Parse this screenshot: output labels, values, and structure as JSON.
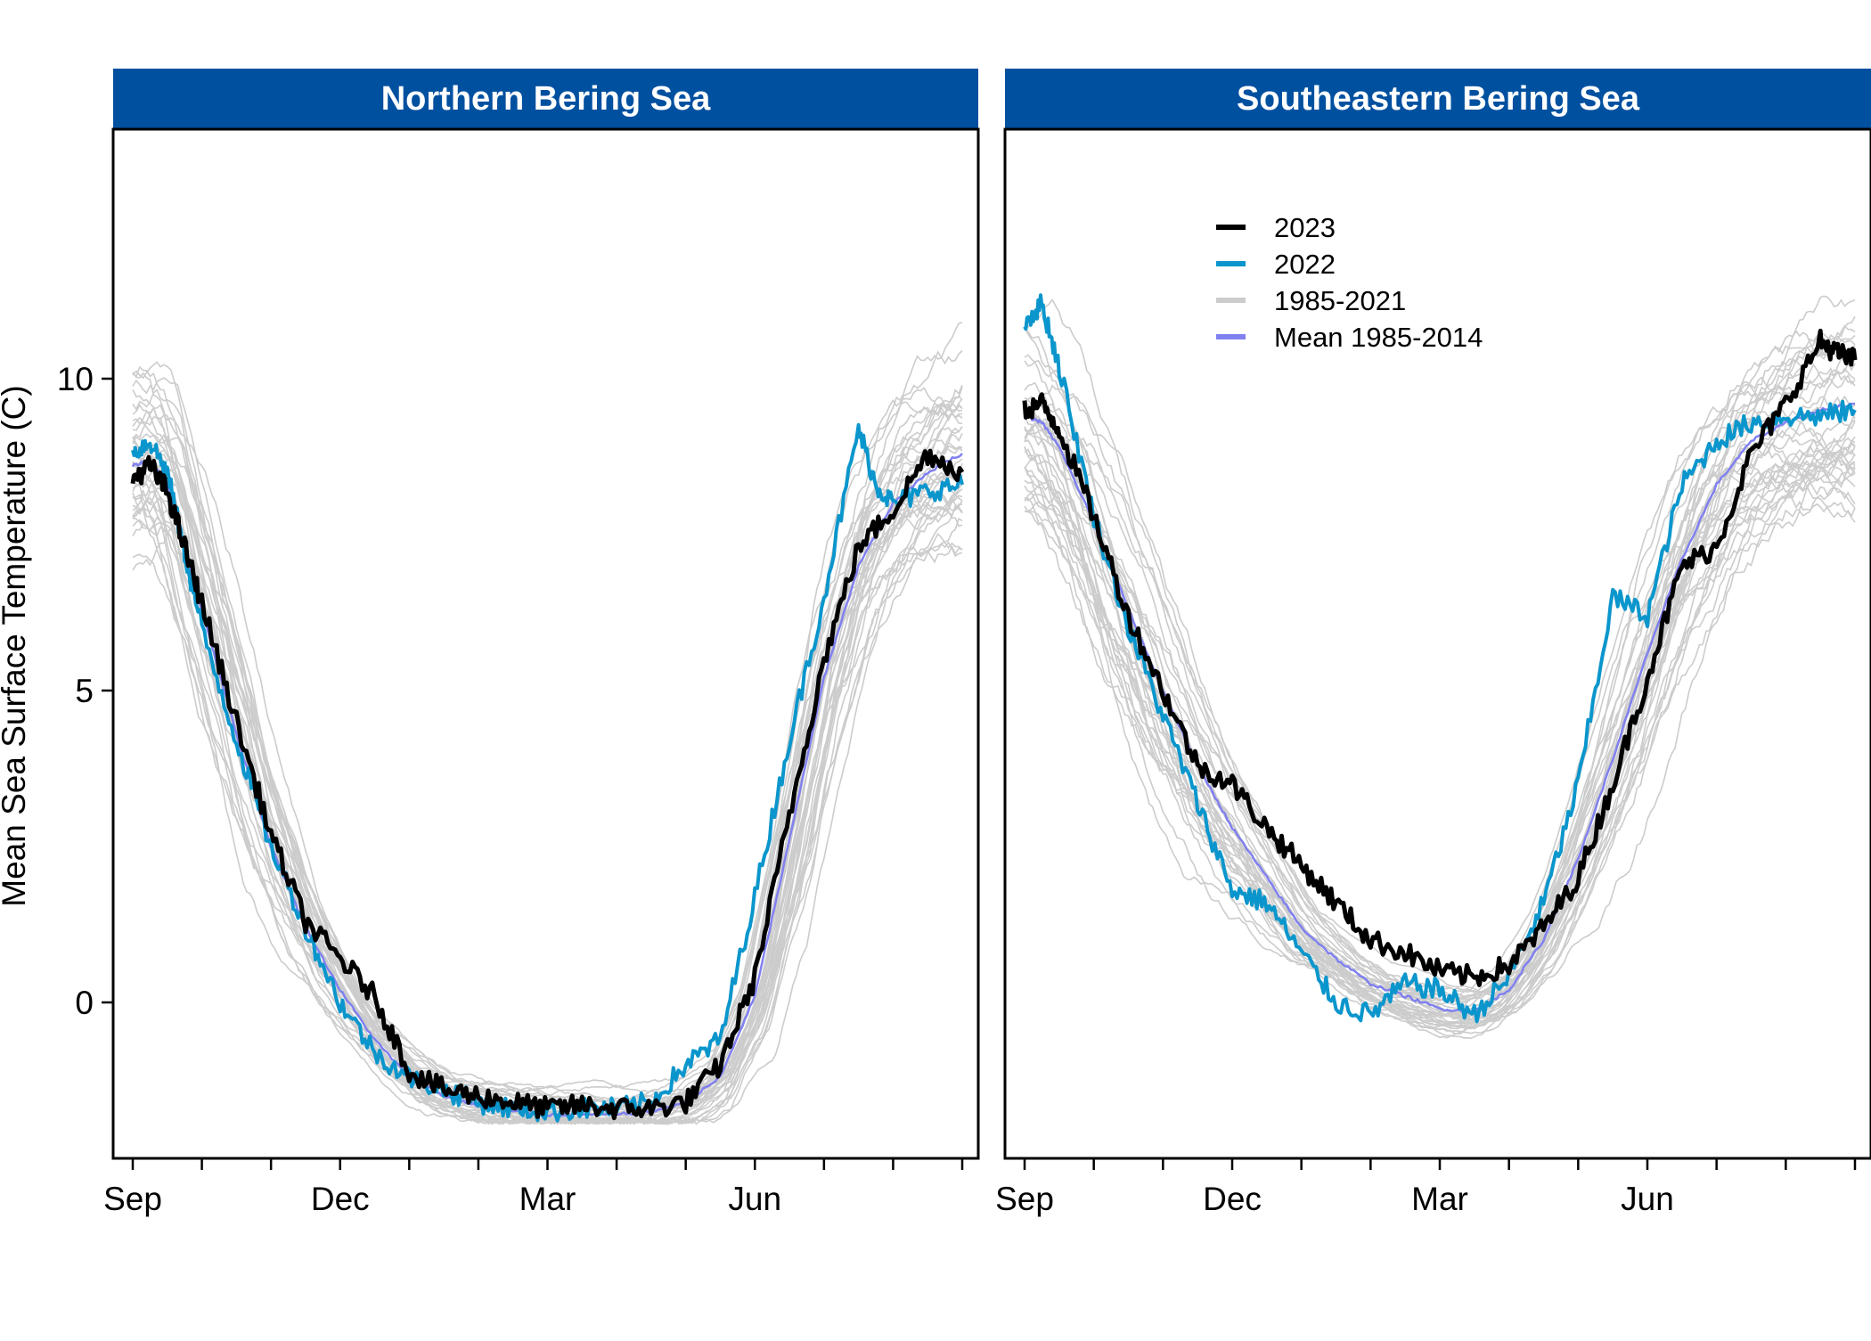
{
  "ylabel": "Mean Sea Surface Temperature (C)",
  "yticks": [
    0,
    5,
    10
  ],
  "xtick_labels": [
    "Sep",
    "Dec",
    "Mar",
    "Jun"
  ],
  "legend_items": [
    {
      "label": "2023",
      "color": "#000000"
    },
    {
      "label": "2022",
      "color": "#0a96cc"
    },
    {
      "label": "1985-2021",
      "color": "#cccccc"
    },
    {
      "label": "Mean 1985-2014",
      "color": "#8080f0"
    }
  ],
  "colors": {
    "strip": "#0050a0",
    "strip_text": "#ffffff",
    "y2023": "#000000",
    "y2022": "#0a96cc",
    "history": "#cccccc",
    "mean": "#8080f0"
  },
  "chart_data": [
    {
      "type": "line",
      "title": "Northern Bering Sea",
      "x_unit": "month of season (0 = Sep 1)",
      "xlim": [
        0,
        12
      ],
      "ylim": [
        -2.5,
        14
      ],
      "series": [
        {
          "name": "2023",
          "x": [
            0,
            0.25,
            0.5,
            0.75,
            1,
            1.5,
            2,
            2.5,
            3,
            3.5,
            4,
            4.5,
            5,
            5.5,
            6,
            6.5,
            7,
            7.5,
            8,
            8.5,
            9,
            9.5,
            10,
            10.5,
            11,
            11.5,
            12
          ],
          "y": [
            8.4,
            8.6,
            8.2,
            7.3,
            6.4,
            4.5,
            2.7,
            1.3,
            0.7,
            0.1,
            -1.1,
            -1.4,
            -1.5,
            -1.6,
            -1.7,
            -1.65,
            -1.7,
            -1.7,
            -1.6,
            -1.0,
            0.4,
            3.0,
            5.5,
            7.3,
            7.9,
            8.8,
            8.5
          ]
        },
        {
          "name": "2022",
          "x": [
            0,
            0.25,
            0.5,
            0.75,
            1,
            1.5,
            2,
            2.5,
            3,
            3.5,
            4,
            4.5,
            5,
            5.5,
            6,
            6.5,
            7,
            7.5,
            8,
            8.5,
            9,
            9.5,
            10,
            10.5,
            10.75,
            11,
            11.5,
            12
          ],
          "y": [
            8.8,
            9.0,
            8.5,
            7.2,
            6.0,
            4.2,
            2.5,
            1.2,
            0.0,
            -0.8,
            -1.2,
            -1.4,
            -1.6,
            -1.7,
            -1.75,
            -1.7,
            -1.7,
            -1.6,
            -1.0,
            -0.6,
            1.7,
            4.2,
            6.5,
            9.2,
            8.3,
            8.0,
            8.2,
            8.3
          ]
        },
        {
          "name": "Mean 1985-2014",
          "x": [
            0,
            0.25,
            0.5,
            1,
            1.5,
            2,
            2.5,
            3,
            3.5,
            4,
            4.5,
            5,
            5.5,
            6,
            6.5,
            7,
            7.5,
            8,
            8.5,
            9,
            9.5,
            10,
            10.5,
            11,
            11.5,
            12
          ],
          "y": [
            8.6,
            8.7,
            8.3,
            6.3,
            4.3,
            2.5,
            1.2,
            0.2,
            -0.6,
            -1.2,
            -1.5,
            -1.65,
            -1.75,
            -1.8,
            -1.8,
            -1.8,
            -1.75,
            -1.6,
            -1.2,
            0.1,
            2.6,
            5.2,
            7.0,
            8.0,
            8.5,
            8.8
          ]
        }
      ]
    },
    {
      "type": "line",
      "title": "Southeastern Bering Sea",
      "x_unit": "month of season (0 = Sep 1)",
      "xlim": [
        0,
        12
      ],
      "ylim": [
        -2.5,
        14
      ],
      "series": [
        {
          "name": "2023",
          "x": [
            0,
            0.25,
            0.5,
            1,
            1.5,
            2,
            2.5,
            3,
            3.5,
            4,
            4.5,
            5,
            5.5,
            6,
            6.5,
            7,
            7.5,
            8,
            8.5,
            9,
            9.5,
            10,
            10.5,
            11,
            11.5,
            11.75,
            12
          ],
          "y": [
            9.5,
            9.6,
            9.2,
            7.8,
            6.2,
            5.0,
            3.8,
            3.5,
            2.8,
            2.2,
            1.6,
            1.0,
            0.8,
            0.5,
            0.4,
            0.6,
            1.2,
            2.0,
            3.5,
            5.2,
            7.0,
            7.3,
            8.8,
            9.6,
            10.6,
            10.4,
            10.3
          ]
        },
        {
          "name": "2022",
          "x": [
            0,
            0.25,
            0.5,
            1,
            1.5,
            2,
            2.5,
            3,
            3.5,
            4,
            4.5,
            5,
            5.5,
            6,
            6.5,
            7,
            7.5,
            8,
            8.5,
            9,
            9.5,
            10,
            10.5,
            11,
            11.5,
            12
          ],
          "y": [
            10.9,
            11.2,
            10.2,
            7.8,
            6.0,
            4.6,
            3.2,
            1.8,
            1.6,
            0.8,
            0.0,
            -0.2,
            0.3,
            0.2,
            -0.2,
            0.4,
            1.6,
            3.5,
            6.5,
            6.2,
            8.3,
            9.0,
            9.3,
            9.4,
            9.4,
            9.5
          ]
        },
        {
          "name": "Mean 1985-2014",
          "x": [
            0,
            0.25,
            0.5,
            1,
            1.5,
            2,
            2.5,
            3,
            3.5,
            4,
            4.5,
            5,
            5.5,
            6,
            6.5,
            7,
            7.5,
            8,
            8.5,
            9,
            9.5,
            10,
            10.5,
            11,
            11.5,
            12
          ],
          "y": [
            9.4,
            9.3,
            8.9,
            7.7,
            6.3,
            5.0,
            3.8,
            2.8,
            2.0,
            1.2,
            0.7,
            0.3,
            0.1,
            -0.1,
            -0.15,
            0.2,
            1.0,
            2.3,
            3.9,
            5.6,
            7.1,
            8.3,
            9.0,
            9.3,
            9.5,
            9.6
          ]
        }
      ]
    }
  ]
}
